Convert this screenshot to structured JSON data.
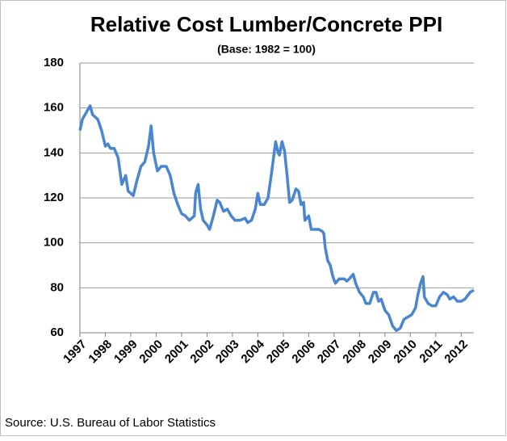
{
  "chart_data": {
    "type": "line",
    "title": "Relative Cost Lumber/Concrete PPI",
    "subtitle": "(Base: 1982 = 100)",
    "source": "Source: U.S. Bureau of Labor Statistics",
    "x": [
      1997.0,
      1997.1,
      1997.25,
      1997.4,
      1997.5,
      1997.7,
      1997.85,
      1998.0,
      1998.1,
      1998.2,
      1998.35,
      1998.5,
      1998.65,
      1998.8,
      1998.9,
      1999.0,
      1999.1,
      1999.25,
      1999.4,
      1999.55,
      1999.7,
      1999.8,
      1999.9,
      2000.05,
      2000.2,
      2000.4,
      2000.55,
      2000.7,
      2000.85,
      2001.0,
      2001.15,
      2001.3,
      2001.4,
      2001.5,
      2001.55,
      2001.65,
      2001.75,
      2001.85,
      2002.0,
      2002.1,
      2002.25,
      2002.4,
      2002.5,
      2002.65,
      2002.8,
      2002.95,
      2003.1,
      2003.3,
      2003.5,
      2003.6,
      2003.75,
      2003.9,
      2004.0,
      2004.1,
      2004.25,
      2004.4,
      2004.55,
      2004.7,
      2004.8,
      2004.85,
      2004.95,
      2005.05,
      2005.15,
      2005.25,
      2005.35,
      2005.5,
      2005.6,
      2005.7,
      2005.8,
      2005.85,
      2006.0,
      2006.1,
      2006.25,
      2006.4,
      2006.55,
      2006.6,
      2006.65,
      2006.75,
      2006.85,
      2006.95,
      2007.05,
      2007.2,
      2007.4,
      2007.5,
      2007.6,
      2007.75,
      2007.85,
      2008.0,
      2008.15,
      2008.25,
      2008.4,
      2008.55,
      2008.65,
      2008.75,
      2008.85,
      2009.0,
      2009.15,
      2009.3,
      2009.45,
      2009.6,
      2009.75,
      2009.9,
      2010.05,
      2010.2,
      2010.3,
      2010.4,
      2010.5,
      2010.55,
      2010.7,
      2010.85,
      2011.0,
      2011.15,
      2011.3,
      2011.45,
      2011.55,
      2011.7,
      2011.85,
      2012.0,
      2012.15,
      2012.35,
      2012.5
    ],
    "series": [
      {
        "name": "Lumber/Concrete PPI",
        "color": "#4a86d0",
        "values": [
          150,
          155,
          158,
          161,
          157,
          155,
          150,
          143,
          144,
          142,
          142,
          138,
          126,
          130,
          123,
          122,
          121,
          128,
          134,
          136,
          143,
          152,
          140,
          132,
          134,
          134,
          130,
          122,
          117,
          113,
          112,
          110,
          111,
          112,
          122,
          126,
          115,
          110,
          108,
          106,
          112,
          119,
          118,
          114,
          115,
          112,
          110,
          110,
          111,
          109,
          110,
          115,
          122,
          117,
          117,
          120,
          132,
          145,
          140,
          139,
          145,
          141,
          130,
          118,
          119,
          124,
          123,
          117,
          118,
          110,
          112,
          106,
          106,
          106,
          105,
          104,
          98,
          92,
          90,
          85,
          82,
          84,
          84,
          83,
          84,
          86,
          82,
          78,
          76,
          73,
          73,
          78,
          78,
          74,
          75,
          70,
          68,
          63,
          61,
          62,
          66,
          67,
          68,
          71,
          77,
          82,
          85,
          76,
          73,
          72,
          72,
          76,
          78,
          77,
          75,
          76,
          74,
          74,
          75,
          78,
          79
        ]
      }
    ],
    "xlim": [
      1997,
      2012.5
    ],
    "xticks": [
      1997,
      1998,
      1999,
      2000,
      2001,
      2002,
      2003,
      2004,
      2005,
      2006,
      2007,
      2008,
      2009,
      2010,
      2011,
      2012
    ],
    "ylim": [
      60,
      180
    ],
    "yticks": [
      60,
      80,
      100,
      120,
      140,
      160,
      180
    ],
    "grid": true
  }
}
